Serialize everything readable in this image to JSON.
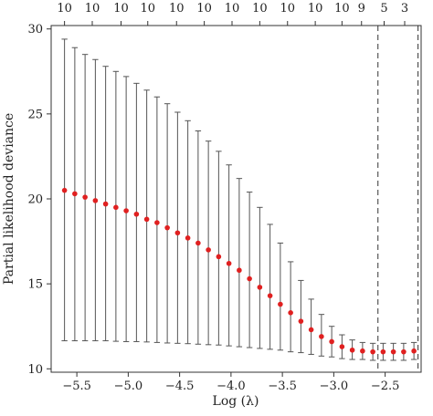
{
  "chart_data": {
    "type": "scatter",
    "title": "",
    "xlabel": "Log (λ)",
    "ylabel": "Partial likelihood deviance",
    "xlim": [
      -5.75,
      -2.15
    ],
    "ylim": [
      9.8,
      30.2
    ],
    "x_ticks": [
      -5.5,
      -5.0,
      -4.5,
      -4.0,
      -3.5,
      -3.0,
      -2.5
    ],
    "x_tick_labels": [
      "−5.5",
      "−5.0",
      "−4.5",
      "−4.0",
      "−3.5",
      "−3.0",
      "−2.5"
    ],
    "y_ticks": [
      10,
      15,
      20,
      25,
      30
    ],
    "y_tick_labels": [
      "10",
      "15",
      "20",
      "25",
      "30"
    ],
    "top_axis": {
      "ticks": [
        -5.62,
        -5.35,
        -5.07,
        -4.81,
        -4.53,
        -4.26,
        -3.99,
        -3.72,
        -3.45,
        -3.18,
        -2.92,
        -2.73,
        -2.51,
        -2.31
      ],
      "labels": [
        "10",
        "10",
        "10",
        "10",
        "10",
        "10",
        "10",
        "10",
        "10",
        "10",
        "10",
        "9",
        "5",
        "3"
      ]
    },
    "vertical_lines": [
      -2.57,
      -2.18
    ],
    "grid": false,
    "series": [
      {
        "x": [
          -5.62,
          -5.52,
          -5.42,
          -5.32,
          -5.22,
          -5.12,
          -5.02,
          -4.92,
          -4.82,
          -4.72,
          -4.62,
          -4.52,
          -4.42,
          -4.32,
          -4.22,
          -4.12,
          -4.02,
          -3.92,
          -3.82,
          -3.72,
          -3.62,
          -3.52,
          -3.42,
          -3.32,
          -3.22,
          -3.12,
          -3.02,
          -2.92,
          -2.82,
          -2.72,
          -2.62,
          -2.52,
          -2.42,
          -2.32,
          -2.22
        ],
        "values": [
          20.5,
          20.3,
          20.1,
          19.9,
          19.7,
          19.5,
          19.3,
          19.1,
          18.8,
          18.6,
          18.3,
          18.0,
          17.7,
          17.4,
          17.0,
          16.6,
          16.2,
          15.8,
          15.3,
          14.8,
          14.3,
          13.8,
          13.3,
          12.8,
          12.3,
          11.9,
          11.6,
          11.3,
          11.1,
          11.05,
          11.0,
          11.0,
          11.0,
          11.0,
          11.05
        ],
        "upper": [
          29.4,
          28.9,
          28.5,
          28.2,
          27.8,
          27.5,
          27.2,
          26.8,
          26.4,
          26.0,
          25.6,
          25.1,
          24.6,
          24.0,
          23.4,
          22.8,
          22.0,
          21.2,
          20.4,
          19.5,
          18.5,
          17.4,
          16.3,
          15.2,
          14.1,
          13.2,
          12.5,
          12.0,
          11.7,
          11.55,
          11.5,
          11.5,
          11.5,
          11.5,
          11.55
        ],
        "lower": [
          11.65,
          11.65,
          11.65,
          11.65,
          11.65,
          11.62,
          11.6,
          11.6,
          11.58,
          11.55,
          11.52,
          11.5,
          11.48,
          11.45,
          11.42,
          11.4,
          11.35,
          11.3,
          11.25,
          11.2,
          11.15,
          11.1,
          11.0,
          10.95,
          10.85,
          10.75,
          10.7,
          10.6,
          10.55,
          10.55,
          10.5,
          10.5,
          10.5,
          10.5,
          10.55
        ],
        "point_color": "#e02020",
        "errorbar_color": "#555555"
      }
    ]
  }
}
